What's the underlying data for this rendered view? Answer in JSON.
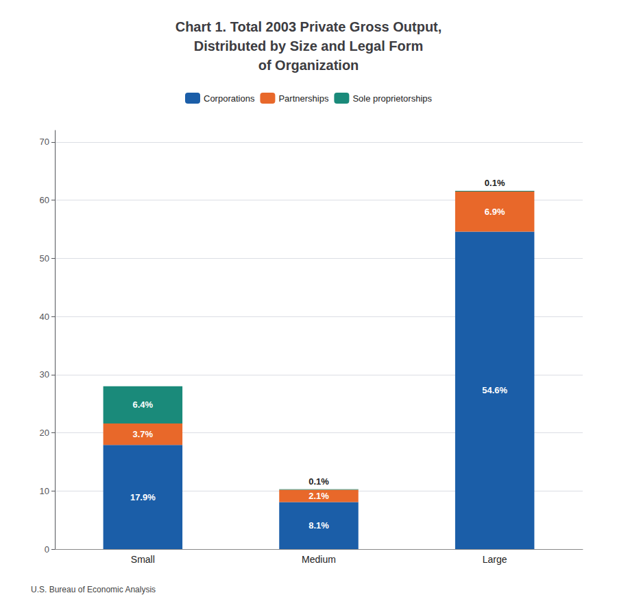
{
  "chart_data": {
    "type": "bar",
    "title": "Chart 1. Total 2003 Private Gross Output,\nDistributed by Size and Legal Form\nof Organization",
    "categories": [
      "Small",
      "Medium",
      "Large"
    ],
    "series": [
      {
        "name": "Corporations",
        "color": "#1B5EA8",
        "values": [
          17.9,
          8.1,
          54.6
        ],
        "value_labels": [
          "17.9%",
          "8.1%",
          "54.6%"
        ]
      },
      {
        "name": "Partnerships",
        "color": "#E8682A",
        "values": [
          3.7,
          2.1,
          6.9
        ],
        "value_labels": [
          "3.7%",
          "2.1%",
          "6.9%"
        ]
      },
      {
        "name": "Sole proprietorships",
        "color": "#1A8A7A",
        "values": [
          6.4,
          0.1,
          0.1
        ],
        "value_labels": [
          "6.4%",
          "0.1%",
          "0.1%"
        ]
      }
    ],
    "stacked": true,
    "data_labels": true,
    "ylim": [
      0,
      72
    ],
    "yticks": [
      0,
      10,
      20,
      30,
      40,
      50,
      60,
      70
    ],
    "grid": true,
    "legend": "top",
    "annotations": [
      "U.S. Bureau of Economic Analysis"
    ]
  }
}
